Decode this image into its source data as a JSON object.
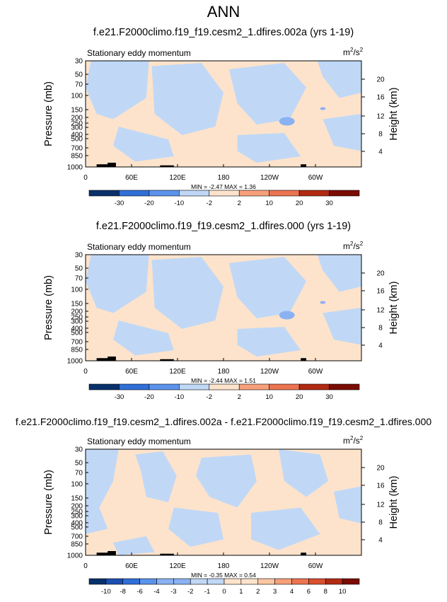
{
  "title": "ANN",
  "palette_colors": [
    "#08306b",
    "#1c4fb0",
    "#2f6fd8",
    "#5b93ec",
    "#8ab2f2",
    "#c0d8f6",
    "#fde3cc",
    "#fbc6a4",
    "#f6a07a",
    "#ec7450",
    "#d8502e",
    "#b22a12",
    "#7a0c02"
  ],
  "chart_data": [
    {
      "type": "heatmap",
      "title": "f.e21.F2000climo.f19_f19.cesm2_1.dfires.002a (yrs 1-19)",
      "left_label": "Stationary eddy momentum",
      "units_base": "m",
      "units_exp1": "2",
      "units_mid": "/s",
      "units_exp2": "2",
      "ylabel": "Pressure (mb)",
      "ylabel_right": "Height (km)",
      "yticks": [
        "30",
        "50",
        "70",
        "100",
        "150",
        "200",
        "250",
        "300",
        "400",
        "500",
        "700",
        "850",
        "1000"
      ],
      "yticks_right": [
        "20",
        "16",
        "12",
        "8",
        "4"
      ],
      "xticks": [
        "0",
        "60E",
        "120E",
        "180",
        "120W",
        "60W"
      ],
      "stats": "MIN = -2.47  MAX = 1.36",
      "min": -2.47,
      "max": 1.36,
      "colorbar_labels": [
        "-30",
        "-20",
        "-10",
        "-2",
        "2",
        "10",
        "20",
        "30"
      ]
    },
    {
      "type": "heatmap",
      "title": "f.e21.F2000climo.f19_f19.cesm2_1.dfires.000 (yrs 1-19)",
      "left_label": "Stationary eddy momentum",
      "units_base": "m",
      "units_exp1": "2",
      "units_mid": "/s",
      "units_exp2": "2",
      "ylabel": "Pressure (mb)",
      "ylabel_right": "Height (km)",
      "yticks": [
        "30",
        "50",
        "70",
        "100",
        "150",
        "200",
        "250",
        "300",
        "400",
        "500",
        "700",
        "850",
        "1000"
      ],
      "yticks_right": [
        "20",
        "16",
        "12",
        "8",
        "4"
      ],
      "xticks": [
        "0",
        "60E",
        "120E",
        "180",
        "120W",
        "60W"
      ],
      "stats": "MIN = -2.44  MAX = 1.51",
      "min": -2.44,
      "max": 1.51,
      "colorbar_labels": [
        "-30",
        "-20",
        "-10",
        "-2",
        "2",
        "10",
        "20",
        "30"
      ]
    },
    {
      "type": "heatmap",
      "title": "f.e21.F2000climo.f19_f19.cesm2_1.dfires.002a - f.e21.F2000climo.f19_f19.cesm2_1.dfires.000",
      "left_label": "Stationary eddy momentum",
      "units_base": "m",
      "units_exp1": "2",
      "units_mid": "/s",
      "units_exp2": "2",
      "ylabel": "Pressure (mb)",
      "ylabel_right": "Height (km)",
      "yticks": [
        "30",
        "50",
        "70",
        "100",
        "150",
        "200",
        "250",
        "300",
        "400",
        "500",
        "700",
        "850",
        "1000"
      ],
      "yticks_right": [
        "20",
        "16",
        "12",
        "8",
        "4"
      ],
      "xticks": [
        "0",
        "60E",
        "120E",
        "180",
        "120W",
        "60W"
      ],
      "stats": "MIN = -0.35  MAX = 0.54",
      "min": -0.35,
      "max": 0.54,
      "colorbar_labels": [
        "-10",
        "-8",
        "-6",
        "-4",
        "-3",
        "-2",
        "-1",
        "0",
        "1",
        "2",
        "3",
        "4",
        "6",
        "8",
        "10"
      ]
    }
  ]
}
